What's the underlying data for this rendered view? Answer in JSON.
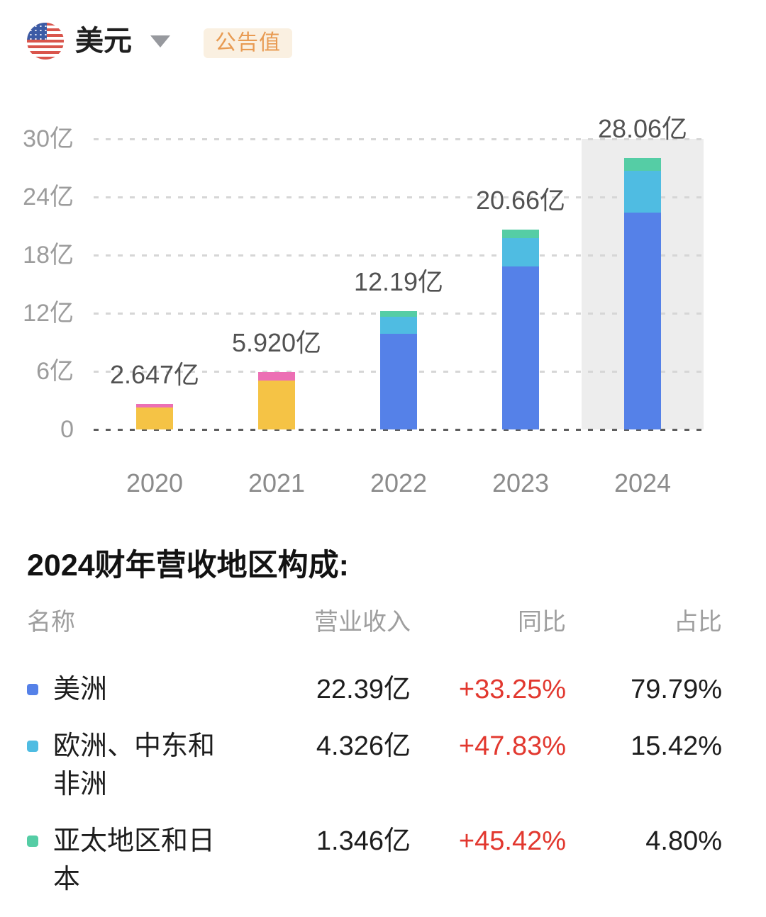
{
  "header": {
    "currency_label": "美元",
    "badge_label": "公告值",
    "badge_text_color": "#E89B53",
    "badge_bg_color": "#FAF0E1"
  },
  "chart_data": {
    "type": "bar",
    "stacked": true,
    "title": "",
    "xlabel": "",
    "ylabel": "",
    "unit": "亿",
    "ylim": [
      0,
      30
    ],
    "grid": "dotted-horizontal",
    "legend_position": "none",
    "y_ticks": [
      {
        "label": "30亿",
        "value": 30
      },
      {
        "label": "24亿",
        "value": 24
      },
      {
        "label": "18亿",
        "value": 18
      },
      {
        "label": "12亿",
        "value": 12
      },
      {
        "label": "6亿",
        "value": 6
      },
      {
        "label": "0",
        "value": 0
      }
    ],
    "categories": [
      "2020",
      "2021",
      "2022",
      "2023",
      "2024"
    ],
    "highlighted_category": "2024",
    "bars": [
      {
        "category": "2020",
        "total": 2.647,
        "total_label": "2.647亿",
        "segments": [
          {
            "color": "#F5C345",
            "value": 2.25
          },
          {
            "color": "#EC6FB4",
            "value": 0.4
          }
        ]
      },
      {
        "category": "2021",
        "total": 5.92,
        "total_label": "5.920亿",
        "segments": [
          {
            "color": "#F5C345",
            "value": 5.05
          },
          {
            "color": "#EC6FB4",
            "value": 0.87
          }
        ]
      },
      {
        "category": "2022",
        "total": 12.19,
        "total_label": "12.19亿",
        "segments": [
          {
            "color": "#5581E8",
            "value": 9.9
          },
          {
            "color": "#4FBCE2",
            "value": 1.7
          },
          {
            "color": "#55CDA5",
            "value": 0.59
          }
        ]
      },
      {
        "category": "2023",
        "total": 20.66,
        "total_label": "20.66亿",
        "segments": [
          {
            "color": "#5581E8",
            "value": 16.8
          },
          {
            "color": "#4FBCE2",
            "value": 2.93
          },
          {
            "color": "#55CDA5",
            "value": 0.93
          }
        ]
      },
      {
        "category": "2024",
        "total": 28.06,
        "total_label": "28.06亿",
        "segments": [
          {
            "color": "#5581E8",
            "value": 22.39
          },
          {
            "color": "#4FBCE2",
            "value": 4.326
          },
          {
            "color": "#55CDA5",
            "value": 1.346
          }
        ]
      }
    ]
  },
  "breakdown": {
    "title": "2024财年营收地区构成:",
    "columns": [
      "名称",
      "营业收入",
      "同比",
      "占比"
    ],
    "yoy_color": "#E2382F",
    "rows": [
      {
        "marker_color": "#5581E8",
        "name": "美洲",
        "revenue": "22.39亿",
        "yoy": "+33.25%",
        "share": "79.79%"
      },
      {
        "marker_color": "#4FBCE2",
        "name": "欧洲、中东和非洲",
        "revenue": "4.326亿",
        "yoy": "+47.83%",
        "share": "15.42%"
      },
      {
        "marker_color": "#55CDA5",
        "name": "亚太地区和日本",
        "revenue": "1.346亿",
        "yoy": "+45.42%",
        "share": "4.80%"
      }
    ]
  }
}
